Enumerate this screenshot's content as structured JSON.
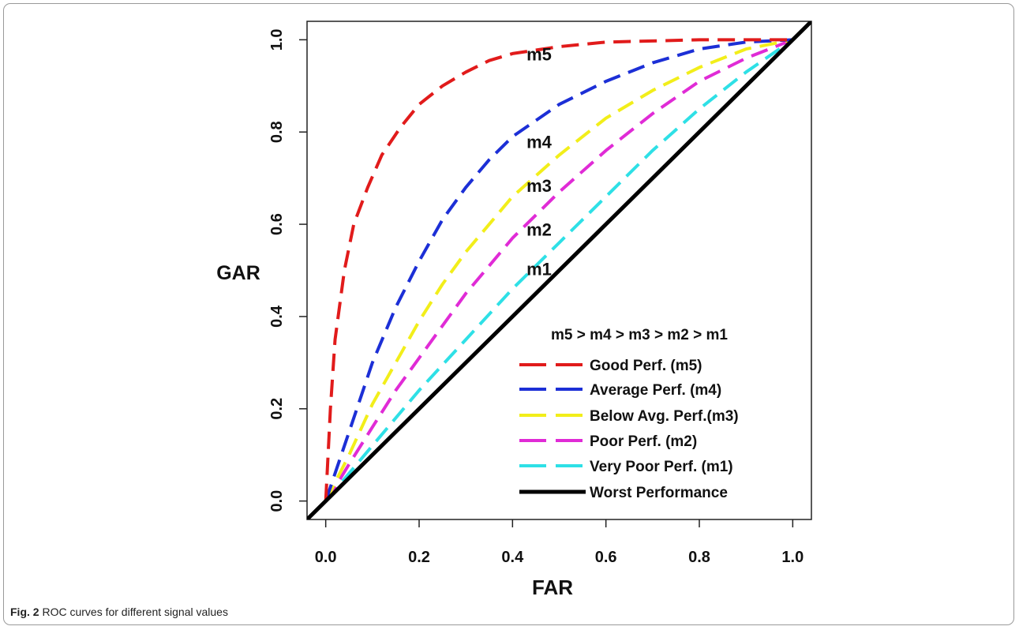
{
  "figure": {
    "caption_label": "Fig. 2",
    "caption_text": "ROC curves for different signal values"
  },
  "chart_data": {
    "type": "line",
    "title": "",
    "xlabel": "FAR",
    "ylabel": "GAR",
    "xlim": [
      -0.04,
      1.04
    ],
    "ylim": [
      -0.04,
      1.04
    ],
    "xticks": [
      "0.0",
      "0.2",
      "0.4",
      "0.6",
      "0.8",
      "1.0"
    ],
    "yticks": [
      "0.0",
      "0.2",
      "0.4",
      "0.6",
      "0.8",
      "1.0"
    ],
    "grid": false,
    "legend_position": "bottom-right",
    "legend_title": "m5 > m4 > m3 > m2 > m1",
    "series": [
      {
        "name": "Good Perf. (m5)",
        "label": "m5",
        "color": "#e11b1b",
        "dash": "dashed",
        "points": [
          [
            0,
            0
          ],
          [
            0.01,
            0.2
          ],
          [
            0.02,
            0.35
          ],
          [
            0.04,
            0.5
          ],
          [
            0.06,
            0.6
          ],
          [
            0.09,
            0.68
          ],
          [
            0.12,
            0.75
          ],
          [
            0.16,
            0.81
          ],
          [
            0.2,
            0.86
          ],
          [
            0.25,
            0.9
          ],
          [
            0.3,
            0.93
          ],
          [
            0.35,
            0.955
          ],
          [
            0.4,
            0.97
          ],
          [
            0.5,
            0.985
          ],
          [
            0.6,
            0.995
          ],
          [
            0.8,
            1.0
          ],
          [
            1.0,
            1.0
          ]
        ]
      },
      {
        "name": "Average Perf. (m4)",
        "label": "m4",
        "color": "#1c2fd6",
        "dash": "dashed",
        "points": [
          [
            0,
            0
          ],
          [
            0.02,
            0.06
          ],
          [
            0.05,
            0.15
          ],
          [
            0.1,
            0.3
          ],
          [
            0.15,
            0.42
          ],
          [
            0.2,
            0.52
          ],
          [
            0.25,
            0.61
          ],
          [
            0.3,
            0.68
          ],
          [
            0.35,
            0.74
          ],
          [
            0.4,
            0.79
          ],
          [
            0.5,
            0.86
          ],
          [
            0.6,
            0.91
          ],
          [
            0.7,
            0.95
          ],
          [
            0.8,
            0.98
          ],
          [
            0.9,
            0.995
          ],
          [
            1.0,
            1.0
          ]
        ]
      },
      {
        "name": "Below Avg. Perf.(m3)",
        "label": "m3",
        "color": "#f2ee1a",
        "dash": "dashed",
        "points": [
          [
            0,
            0
          ],
          [
            0.02,
            0.04
          ],
          [
            0.05,
            0.1
          ],
          [
            0.1,
            0.21
          ],
          [
            0.15,
            0.3
          ],
          [
            0.2,
            0.39
          ],
          [
            0.25,
            0.47
          ],
          [
            0.3,
            0.54
          ],
          [
            0.35,
            0.6
          ],
          [
            0.4,
            0.66
          ],
          [
            0.5,
            0.75
          ],
          [
            0.6,
            0.83
          ],
          [
            0.7,
            0.89
          ],
          [
            0.8,
            0.94
          ],
          [
            0.9,
            0.98
          ],
          [
            1.0,
            1.0
          ]
        ]
      },
      {
        "name": "Poor Perf. (m2)",
        "label": "m2",
        "color": "#e02bd6",
        "dash": "dashed",
        "points": [
          [
            0,
            0
          ],
          [
            0.02,
            0.03
          ],
          [
            0.05,
            0.08
          ],
          [
            0.1,
            0.16
          ],
          [
            0.15,
            0.24
          ],
          [
            0.2,
            0.31
          ],
          [
            0.25,
            0.38
          ],
          [
            0.3,
            0.45
          ],
          [
            0.35,
            0.51
          ],
          [
            0.4,
            0.57
          ],
          [
            0.5,
            0.67
          ],
          [
            0.6,
            0.76
          ],
          [
            0.7,
            0.84
          ],
          [
            0.8,
            0.91
          ],
          [
            0.9,
            0.96
          ],
          [
            1.0,
            1.0
          ]
        ]
      },
      {
        "name": "Very Poor Perf. (m1)",
        "label": "m1",
        "color": "#2ee0e6",
        "dash": "dashed",
        "points": [
          [
            0,
            0
          ],
          [
            0.05,
            0.06
          ],
          [
            0.1,
            0.12
          ],
          [
            0.2,
            0.24
          ],
          [
            0.3,
            0.35
          ],
          [
            0.4,
            0.46
          ],
          [
            0.5,
            0.56
          ],
          [
            0.6,
            0.66
          ],
          [
            0.7,
            0.76
          ],
          [
            0.8,
            0.85
          ],
          [
            0.9,
            0.93
          ],
          [
            1.0,
            1.0
          ]
        ]
      },
      {
        "name": "Worst Performance",
        "label": "",
        "color": "#000000",
        "dash": "solid",
        "points": [
          [
            -0.04,
            -0.04
          ],
          [
            1.04,
            1.04
          ]
        ]
      }
    ],
    "annotations": [
      {
        "text": "m5",
        "x": 0.43,
        "y": 0.955
      },
      {
        "text": "m4",
        "x": 0.43,
        "y": 0.765
      },
      {
        "text": "m3",
        "x": 0.43,
        "y": 0.67
      },
      {
        "text": "m2",
        "x": 0.43,
        "y": 0.575
      },
      {
        "text": "m1",
        "x": 0.43,
        "y": 0.49
      }
    ]
  }
}
